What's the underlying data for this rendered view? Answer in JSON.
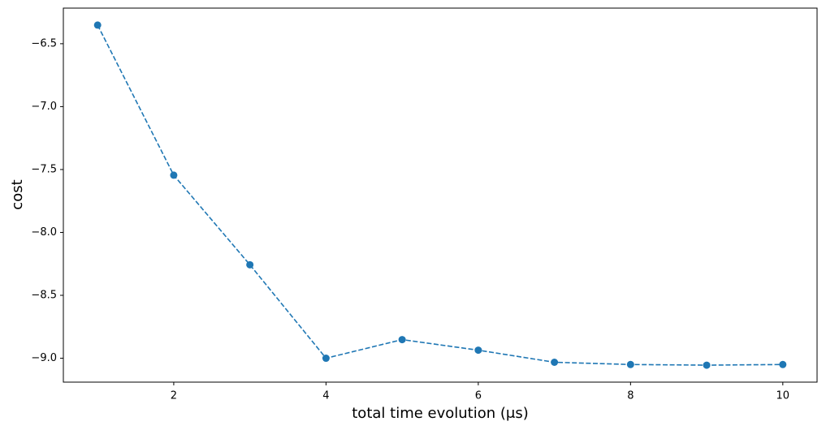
{
  "chart_data": {
    "type": "line",
    "x_label": "total time evolution (μs)",
    "y_label": "cost",
    "x": [
      1,
      2,
      3,
      4,
      5,
      6,
      7,
      8,
      9,
      10
    ],
    "series": [
      {
        "color": "#1f77b4",
        "values": [
          -6.352,
          -7.545,
          -8.257,
          -9.0,
          -8.852,
          -8.936,
          -9.032,
          -9.05,
          -9.055,
          -9.05
        ]
      }
    ],
    "xlim": [
      0.55,
      10.45
    ],
    "xticks": [
      2,
      4,
      6,
      8,
      10
    ],
    "ylim": [
      -9.19,
      -6.217
    ],
    "yticks": [
      {
        "value": -9.0,
        "label": "−9.0"
      },
      {
        "value": -8.5,
        "label": "−8.5"
      },
      {
        "value": -8.0,
        "label": "−8.0"
      },
      {
        "value": -7.5,
        "label": "−7.5"
      },
      {
        "value": -7.0,
        "label": "−7.0"
      },
      {
        "value": -6.5,
        "label": "−6.5"
      }
    ],
    "line_style": "dashed",
    "marker": "circle"
  }
}
